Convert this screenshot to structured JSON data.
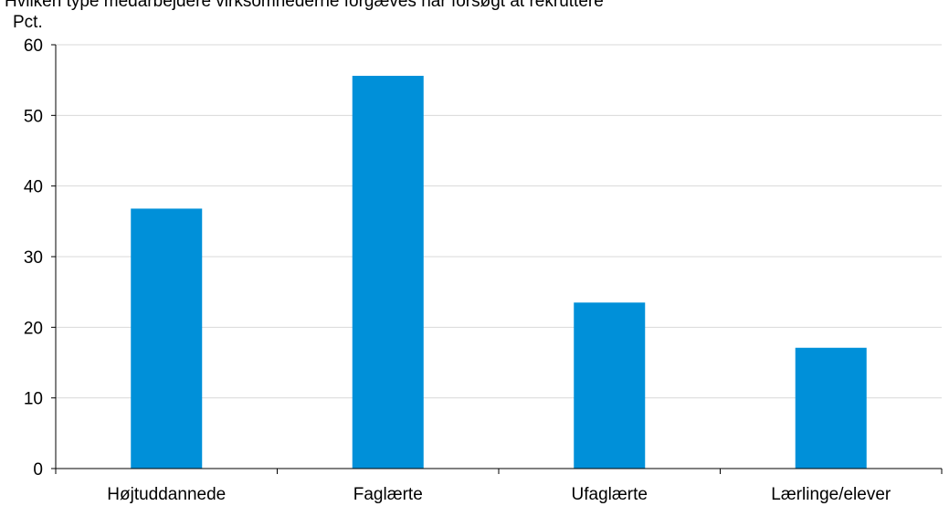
{
  "chart_data": {
    "type": "bar",
    "title": "Hvilken type medarbejdere virksomhederne forgæves har forsøgt at rekruttere",
    "ylabel": "Pct.",
    "xlabel": "",
    "categories": [
      "Højtuddannede",
      "Faglærte",
      "Ufaglærte",
      "Lærlinge/elever"
    ],
    "values": [
      36.8,
      55.6,
      23.5,
      17.1
    ],
    "ylim": [
      0,
      60
    ],
    "yticks": [
      0,
      10,
      20,
      30,
      40,
      50,
      60
    ],
    "grid": true,
    "bar_color": "#0090d9",
    "grid_color": "#d9d9d9"
  }
}
